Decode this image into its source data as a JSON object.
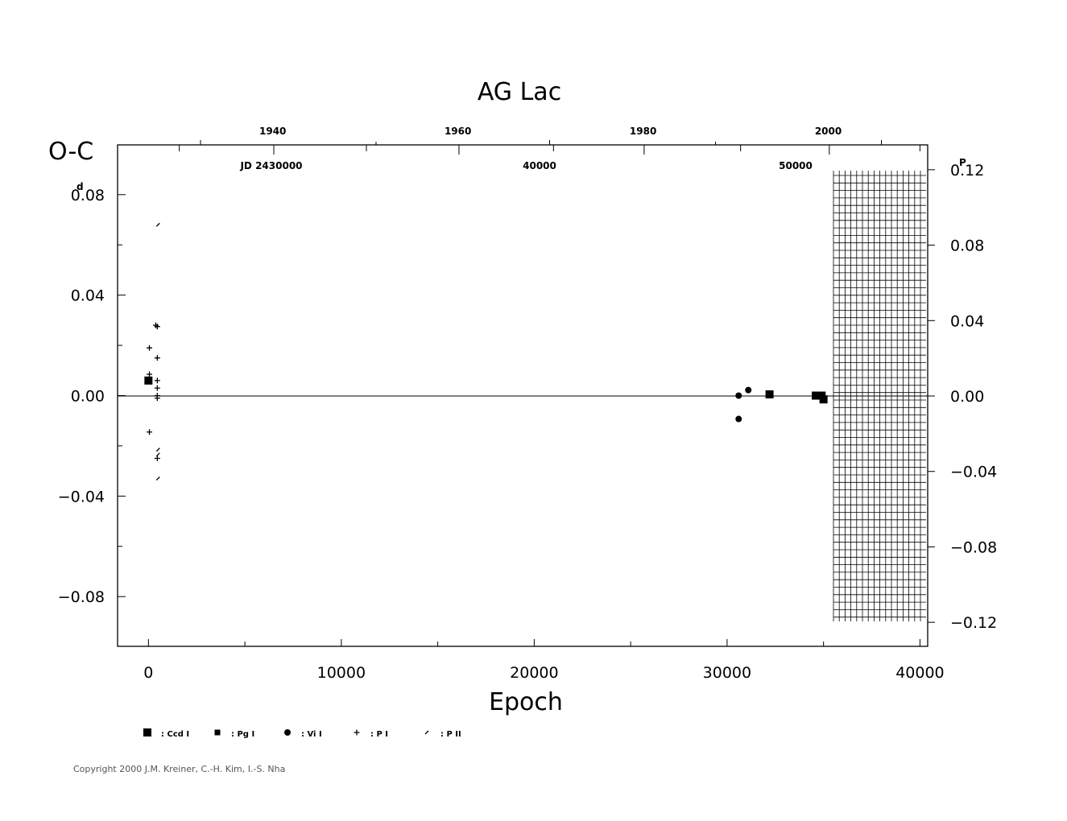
{
  "chart_data": {
    "type": "scatter",
    "title": "AG Lac",
    "xlabel": "Epoch",
    "ylabel": "O-C",
    "ylabel_unit_left": "d",
    "ylabel_unit_right": "P",
    "xlim": [
      -1600,
      40400
    ],
    "ylim": [
      -0.0998,
      0.0998
    ],
    "x_ticks": [
      "0",
      "10000",
      "20000",
      "30000",
      "40000"
    ],
    "y_ticks_left": [
      "0.08",
      "0.04",
      "0.00",
      "−0.04",
      "−0.08"
    ],
    "y_ticks_right": [
      "0.12",
      "0.08",
      "0.04",
      "0.00",
      "−0.04",
      "−0.08",
      "−0.12"
    ],
    "top_year_ticks": [
      "1940",
      "1960",
      "1980",
      "2000"
    ],
    "jd_labels": [
      "JD 2430000",
      "40000",
      "50000"
    ],
    "series": [
      {
        "name": "Ccd I",
        "marker": "square-large",
        "points": [
          [
            0,
            0.006
          ],
          [
            32200,
            0.0005
          ],
          [
            34600,
            0.0
          ],
          [
            34900,
            0.0
          ],
          [
            35000,
            -0.0015
          ]
        ]
      },
      {
        "name": "Pg I",
        "marker": "square-small",
        "points": []
      },
      {
        "name": "Vi I",
        "marker": "circle",
        "points": [
          [
            30600,
            0.0
          ],
          [
            30600,
            -0.0093
          ],
          [
            31100,
            0.0022
          ]
        ]
      },
      {
        "name": "P I",
        "marker": "plus",
        "points": [
          [
            50,
            0.019
          ],
          [
            50,
            0.0085
          ],
          [
            50,
            -0.0145
          ],
          [
            380,
            0.028
          ],
          [
            460,
            0.0275
          ],
          [
            460,
            0.015
          ],
          [
            460,
            0.006
          ],
          [
            460,
            0.003
          ],
          [
            460,
            0.0
          ],
          [
            460,
            -0.001
          ],
          [
            460,
            -0.025
          ]
        ]
      },
      {
        "name": "P II",
        "marker": "x",
        "points": [
          [
            500,
            0.068
          ],
          [
            500,
            -0.0215
          ],
          [
            500,
            -0.0235
          ],
          [
            500,
            -0.033
          ]
        ]
      }
    ],
    "grid": false,
    "legend_position": "bottom-left"
  },
  "legend": [
    {
      "label": ": Ccd  I"
    },
    {
      "label": ": Pg  I"
    },
    {
      "label": ": Vi  I"
    },
    {
      "label": ": P  I"
    },
    {
      "label": ": P  II"
    }
  ],
  "copyright": "Copyright 2000 J.M. Kreiner, C.-H. Kim, I.-S. Nha"
}
